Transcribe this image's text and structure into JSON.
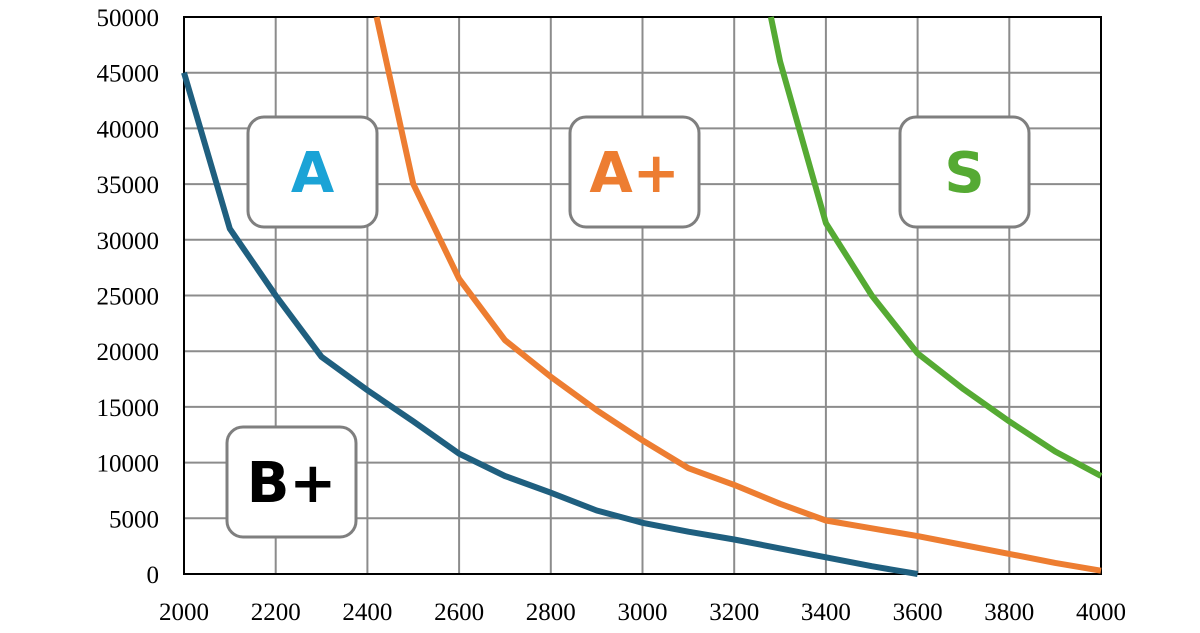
{
  "chart_data": {
    "type": "line",
    "title": "",
    "xlabel": "",
    "ylabel": "",
    "xlim": [
      2000,
      4000
    ],
    "ylim": [
      0,
      50000
    ],
    "x_ticks": [
      2000,
      2200,
      2400,
      2600,
      2800,
      3000,
      3200,
      3400,
      3600,
      3800,
      4000
    ],
    "x_tick_labels": [
      "2000",
      "2200",
      "2400",
      "2600",
      "2800",
      "3000",
      "3200",
      "3400",
      "3600",
      "3800",
      "4000"
    ],
    "y_ticks": [
      0,
      5000,
      10000,
      15000,
      20000,
      25000,
      30000,
      35000,
      40000,
      45000,
      50000
    ],
    "y_tick_labels": [
      "0",
      "5000",
      "10000",
      "15000",
      "20000",
      "25000",
      "30000",
      "35000",
      "40000",
      "45000",
      "50000"
    ],
    "grid": true,
    "legend": "none",
    "series": [
      {
        "color": "#1f5f7f",
        "points": [
          [
            2000,
            45000
          ],
          [
            2100,
            31000
          ],
          [
            2200,
            25000
          ],
          [
            2300,
            19500
          ],
          [
            2400,
            16500
          ],
          [
            2500,
            13700
          ],
          [
            2600,
            10800
          ],
          [
            2700,
            8800
          ],
          [
            2800,
            7300
          ],
          [
            2900,
            5700
          ],
          [
            3000,
            4600
          ],
          [
            3100,
            3800
          ],
          [
            3200,
            3100
          ],
          [
            3300,
            2300
          ],
          [
            3400,
            1500
          ],
          [
            3500,
            700
          ],
          [
            3600,
            0
          ]
        ]
      },
      {
        "color": "#ed7d31",
        "points": [
          [
            2420,
            50000
          ],
          [
            2500,
            35000
          ],
          [
            2600,
            26500
          ],
          [
            2700,
            21000
          ],
          [
            2800,
            17700
          ],
          [
            2900,
            14700
          ],
          [
            3000,
            12000
          ],
          [
            3100,
            9500
          ],
          [
            3200,
            8000
          ],
          [
            3300,
            6300
          ],
          [
            3400,
            4800
          ],
          [
            3500,
            4100
          ],
          [
            3600,
            3400
          ],
          [
            3700,
            2600
          ],
          [
            3800,
            1800
          ],
          [
            3900,
            1000
          ],
          [
            4000,
            300
          ]
        ]
      },
      {
        "color": "#55aa33",
        "points": [
          [
            3280,
            50000
          ],
          [
            3300,
            46000
          ],
          [
            3400,
            31500
          ],
          [
            3500,
            25000
          ],
          [
            3600,
            19800
          ],
          [
            3700,
            16600
          ],
          [
            3800,
            13700
          ],
          [
            3900,
            11000
          ],
          [
            4000,
            8800
          ]
        ]
      }
    ],
    "annotations": [
      {
        "text": "A",
        "color": "#1ba3d6"
      },
      {
        "text": "A+",
        "color": "#ed7d31"
      },
      {
        "text": "S",
        "color": "#55aa33"
      },
      {
        "text": "B+",
        "color": "#000000"
      }
    ]
  }
}
